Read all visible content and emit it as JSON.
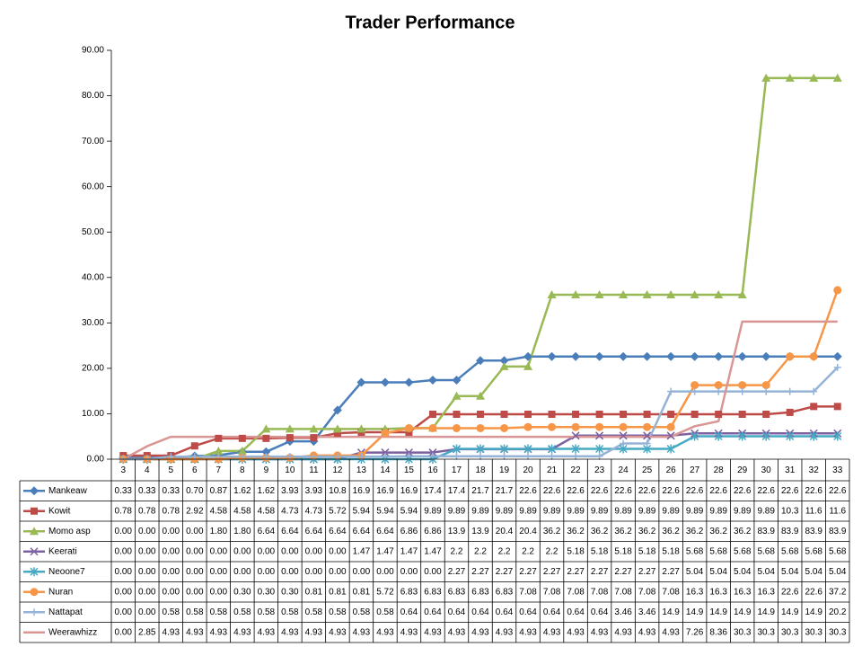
{
  "chart_data": {
    "type": "line",
    "title": "Trader Performance",
    "categories": [
      "3",
      "4",
      "5",
      "6",
      "7",
      "8",
      "9",
      "10",
      "11",
      "12",
      "13",
      "14",
      "15",
      "16",
      "17",
      "18",
      "19",
      "20",
      "21",
      "22",
      "23",
      "24",
      "25",
      "26",
      "27",
      "28",
      "29",
      "30",
      "31",
      "32",
      "33"
    ],
    "ylim": [
      0,
      90
    ],
    "yticks": [
      {
        "value": 0,
        "label": "0.00"
      },
      {
        "value": 10,
        "label": "10.00"
      },
      {
        "value": 20,
        "label": "20.00"
      },
      {
        "value": 30,
        "label": "30.00"
      },
      {
        "value": 40,
        "label": "40.00"
      },
      {
        "value": 50,
        "label": "50.00"
      },
      {
        "value": 60,
        "label": "60.00"
      },
      {
        "value": 70,
        "label": "70.00"
      },
      {
        "value": 80,
        "label": "80.00"
      },
      {
        "value": 90,
        "label": "90.00"
      }
    ],
    "grid": false,
    "series": [
      {
        "name": "Mankeaw",
        "color": "#4a7ebb",
        "marker": "diamond",
        "values": [
          0.33,
          0.33,
          0.33,
          0.7,
          0.87,
          1.62,
          1.62,
          3.93,
          3.93,
          10.8,
          16.9,
          16.9,
          16.9,
          17.4,
          17.4,
          21.7,
          21.7,
          22.6,
          22.6,
          22.6,
          22.6,
          22.6,
          22.6,
          22.6,
          22.6,
          22.6,
          22.6,
          22.6,
          22.6,
          22.6,
          22.6
        ],
        "value_labels": [
          "0.33",
          "0.33",
          "0.33",
          "0.70",
          "0.87",
          "1.62",
          "1.62",
          "3.93",
          "3.93",
          "10.8",
          "16.9",
          "16.9",
          "16.9",
          "17.4",
          "17.4",
          "21.7",
          "21.7",
          "22.6",
          "22.6",
          "22.6",
          "22.6",
          "22.6",
          "22.6",
          "22.6",
          "22.6",
          "22.6",
          "22.6",
          "22.6",
          "22.6",
          "22.6",
          "22.6"
        ]
      },
      {
        "name": "Kowit",
        "color": "#be4b48",
        "marker": "square",
        "values": [
          0.78,
          0.78,
          0.78,
          2.92,
          4.58,
          4.58,
          4.58,
          4.73,
          4.73,
          5.72,
          5.94,
          5.94,
          5.94,
          9.89,
          9.89,
          9.89,
          9.89,
          9.89,
          9.89,
          9.89,
          9.89,
          9.89,
          9.89,
          9.89,
          9.89,
          9.89,
          9.89,
          9.89,
          10.3,
          11.6,
          11.6
        ],
        "value_labels": [
          "0.78",
          "0.78",
          "0.78",
          "2.92",
          "4.58",
          "4.58",
          "4.58",
          "4.73",
          "4.73",
          "5.72",
          "5.94",
          "5.94",
          "5.94",
          "9.89",
          "9.89",
          "9.89",
          "9.89",
          "9.89",
          "9.89",
          "9.89",
          "9.89",
          "9.89",
          "9.89",
          "9.89",
          "9.89",
          "9.89",
          "9.89",
          "9.89",
          "10.3",
          "11.6",
          "11.6"
        ]
      },
      {
        "name": "Momo asp",
        "color": "#98b954",
        "marker": "triangle",
        "values": [
          0,
          0,
          0,
          0,
          1.8,
          1.8,
          6.64,
          6.64,
          6.64,
          6.64,
          6.64,
          6.64,
          6.86,
          6.86,
          13.9,
          13.9,
          20.4,
          20.4,
          36.2,
          36.2,
          36.2,
          36.2,
          36.2,
          36.2,
          36.2,
          36.2,
          36.2,
          83.9,
          83.9,
          83.9,
          83.9
        ],
        "value_labels": [
          "0.00",
          "0.00",
          "0.00",
          "0.00",
          "1.80",
          "1.80",
          "6.64",
          "6.64",
          "6.64",
          "6.64",
          "6.64",
          "6.64",
          "6.86",
          "6.86",
          "13.9",
          "13.9",
          "20.4",
          "20.4",
          "36.2",
          "36.2",
          "36.2",
          "36.2",
          "36.2",
          "36.2",
          "36.2",
          "36.2",
          "36.2",
          "83.9",
          "83.9",
          "83.9",
          "83.9"
        ]
      },
      {
        "name": "Keerati",
        "color": "#7d60a0",
        "marker": "x",
        "values": [
          0,
          0,
          0,
          0,
          0,
          0,
          0,
          0,
          0,
          0,
          1.47,
          1.47,
          1.47,
          1.47,
          2.2,
          2.2,
          2.2,
          2.2,
          2.2,
          5.18,
          5.18,
          5.18,
          5.18,
          5.18,
          5.68,
          5.68,
          5.68,
          5.68,
          5.68,
          5.68,
          5.68
        ],
        "value_labels": [
          "0.00",
          "0.00",
          "0.00",
          "0.00",
          "0.00",
          "0.00",
          "0.00",
          "0.00",
          "0.00",
          "0.00",
          "1.47",
          "1.47",
          "1.47",
          "1.47",
          "2.2",
          "2.2",
          "2.2",
          "2.2",
          "2.2",
          "5.18",
          "5.18",
          "5.18",
          "5.18",
          "5.18",
          "5.68",
          "5.68",
          "5.68",
          "5.68",
          "5.68",
          "5.68",
          "5.68"
        ]
      },
      {
        "name": "Neoone7",
        "color": "#46aac5",
        "marker": "star",
        "values": [
          0,
          0,
          0,
          0,
          0,
          0,
          0,
          0,
          0,
          0,
          0,
          0,
          0,
          0,
          2.27,
          2.27,
          2.27,
          2.27,
          2.27,
          2.27,
          2.27,
          2.27,
          2.27,
          2.27,
          5.04,
          5.04,
          5.04,
          5.04,
          5.04,
          5.04,
          5.04
        ],
        "value_labels": [
          "0.00",
          "0.00",
          "0.00",
          "0.00",
          "0.00",
          "0.00",
          "0.00",
          "0.00",
          "0.00",
          "0.00",
          "0.00",
          "0.00",
          "0.00",
          "0.00",
          "2.27",
          "2.27",
          "2.27",
          "2.27",
          "2.27",
          "2.27",
          "2.27",
          "2.27",
          "2.27",
          "2.27",
          "5.04",
          "5.04",
          "5.04",
          "5.04",
          "5.04",
          "5.04",
          "5.04"
        ]
      },
      {
        "name": "Nuran",
        "color": "#f79646",
        "marker": "circle",
        "values": [
          0,
          0,
          0,
          0,
          0,
          0.3,
          0.3,
          0.3,
          0.81,
          0.81,
          0.81,
          5.72,
          6.83,
          6.83,
          6.83,
          6.83,
          6.83,
          7.08,
          7.08,
          7.08,
          7.08,
          7.08,
          7.08,
          7.08,
          16.3,
          16.3,
          16.3,
          16.3,
          22.6,
          22.6,
          37.2
        ],
        "value_labels": [
          "0.00",
          "0.00",
          "0.00",
          "0.00",
          "0.00",
          "0.30",
          "0.30",
          "0.30",
          "0.81",
          "0.81",
          "0.81",
          "5.72",
          "6.83",
          "6.83",
          "6.83",
          "6.83",
          "6.83",
          "7.08",
          "7.08",
          "7.08",
          "7.08",
          "7.08",
          "7.08",
          "7.08",
          "16.3",
          "16.3",
          "16.3",
          "16.3",
          "22.6",
          "22.6",
          "37.2"
        ]
      },
      {
        "name": "Nattapat",
        "color": "#95b3d7",
        "marker": "plus",
        "values": [
          0,
          0,
          0.58,
          0.58,
          0.58,
          0.58,
          0.58,
          0.58,
          0.58,
          0.58,
          0.58,
          0.58,
          0.64,
          0.64,
          0.64,
          0.64,
          0.64,
          0.64,
          0.64,
          0.64,
          0.64,
          3.46,
          3.46,
          14.9,
          14.9,
          14.9,
          14.9,
          14.9,
          14.9,
          14.9,
          20.2
        ],
        "value_labels": [
          "0.00",
          "0.00",
          "0.58",
          "0.58",
          "0.58",
          "0.58",
          "0.58",
          "0.58",
          "0.58",
          "0.58",
          "0.58",
          "0.58",
          "0.64",
          "0.64",
          "0.64",
          "0.64",
          "0.64",
          "0.64",
          "0.64",
          "0.64",
          "0.64",
          "3.46",
          "3.46",
          "14.9",
          "14.9",
          "14.9",
          "14.9",
          "14.9",
          "14.9",
          "14.9",
          "20.2"
        ]
      },
      {
        "name": "Weerawhizz",
        "color": "#d99694",
        "marker": "none",
        "values": [
          0,
          2.85,
          4.93,
          4.93,
          4.93,
          4.93,
          4.93,
          4.93,
          4.93,
          4.93,
          4.93,
          4.93,
          4.93,
          4.93,
          4.93,
          4.93,
          4.93,
          4.93,
          4.93,
          4.93,
          4.93,
          4.93,
          4.93,
          4.93,
          7.26,
          8.36,
          30.3,
          30.3,
          30.3,
          30.3,
          30.3
        ],
        "value_labels": [
          "0.00",
          "2.85",
          "4.93",
          "4.93",
          "4.93",
          "4.93",
          "4.93",
          "4.93",
          "4.93",
          "4.93",
          "4.93",
          "4.93",
          "4.93",
          "4.93",
          "4.93",
          "4.93",
          "4.93",
          "4.93",
          "4.93",
          "4.93",
          "4.93",
          "4.93",
          "4.93",
          "4.93",
          "7.26",
          "8.36",
          "30.3",
          "30.3",
          "30.3",
          "30.3",
          "30.3"
        ]
      }
    ]
  }
}
